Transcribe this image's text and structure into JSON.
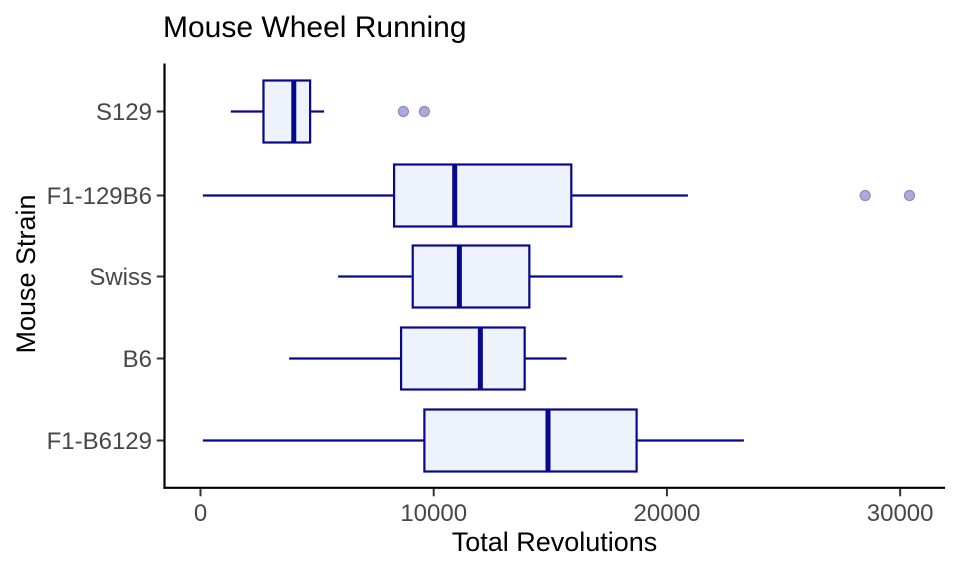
{
  "chart_data": {
    "type": "boxplot",
    "orientation": "horizontal",
    "title": "Mouse Wheel Running",
    "xlabel": "Total Revolutions",
    "ylabel": "Mouse Strain",
    "x_axis": {
      "min": 0,
      "max": 32000,
      "ticks": [
        0,
        10000,
        20000,
        30000
      ],
      "tick_labels": [
        "0",
        "10000",
        "20000",
        "30000"
      ]
    },
    "categories_top_to_bottom": [
      "S129",
      "F1-129B6",
      "Swiss",
      "B6",
      "F1-B6129"
    ],
    "series": [
      {
        "category": "S129",
        "whisker_low": 1300,
        "q1": 2700,
        "median": 4000,
        "q3": 4700,
        "whisker_high": 5300,
        "outliers": [
          8700,
          9600
        ]
      },
      {
        "category": "F1-129B6",
        "whisker_low": 100,
        "q1": 8300,
        "median": 10900,
        "q3": 15900,
        "whisker_high": 20900,
        "outliers": [
          28500,
          30400
        ]
      },
      {
        "category": "Swiss",
        "whisker_low": 5900,
        "q1": 9100,
        "median": 11100,
        "q3": 14100,
        "whisker_high": 18100,
        "outliers": []
      },
      {
        "category": "B6",
        "whisker_low": 3800,
        "q1": 8600,
        "median": 12000,
        "q3": 13900,
        "whisker_high": 15700,
        "outliers": []
      },
      {
        "category": "F1-B6129",
        "whisker_low": 100,
        "q1": 9600,
        "median": 14900,
        "q3": 18700,
        "whisker_high": 23300,
        "outliers": []
      }
    ],
    "style": {
      "background": "#FFFFFF",
      "box_fill": "#EDF2FB",
      "box_border": "#08088A",
      "median_color": "#08088A",
      "whisker_color": "#08088A",
      "outlier_fill": "#A2A2D5",
      "outlier_stroke": "#8B8BC1",
      "axis_line_color": "#000000",
      "tick_color": "#333333",
      "tick_label_color": "#474747",
      "text_color": "#000000",
      "grid": "off",
      "legend": "none"
    }
  }
}
